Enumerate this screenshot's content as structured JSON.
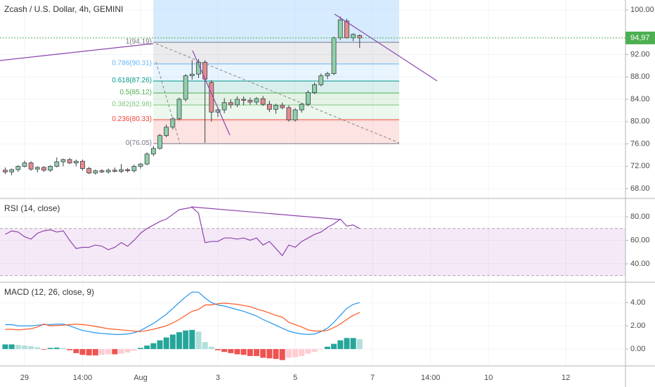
{
  "chart_data": [
    {
      "type": "candlestick",
      "title": "Zcash / U.S. Dollar, 4h, GEMINI",
      "xlim": [
        -0.81,
        96.25
      ],
      "xticks": [
        {
          "value": 3,
          "label": "29"
        },
        {
          "value": 12,
          "label": "14:00"
        },
        {
          "value": 21,
          "label": "Aug"
        },
        {
          "value": 33,
          "label": "3"
        },
        {
          "value": 45,
          "label": "5"
        },
        {
          "value": 57,
          "label": "7"
        },
        {
          "value": 66,
          "label": "14:00"
        },
        {
          "value": 75,
          "label": "10"
        },
        {
          "value": 87,
          "label": "12"
        }
      ],
      "ylim": [
        66.25,
        101.76
      ],
      "yticks": [
        {
          "value": 100,
          "label": "100.00"
        },
        {
          "value": 92,
          "label": "92.00"
        },
        {
          "value": 88,
          "label": "88.00"
        },
        {
          "value": 84,
          "label": "84.00"
        },
        {
          "value": 80,
          "label": "80.00"
        },
        {
          "value": 76,
          "label": "76.00"
        },
        {
          "value": 72,
          "label": "72.00"
        },
        {
          "value": 68,
          "label": "68.00"
        }
      ],
      "up_color": "#8fd1a8",
      "down_color": "#e88b8b",
      "open": [
        71.3,
        71.0,
        71.4,
        72.0,
        72.6,
        71.5,
        71.8,
        71.3,
        72.0,
        72.8,
        73.2,
        72.6,
        72.9,
        71.6,
        70.8,
        71.2,
        71.0,
        71.3,
        71.1,
        71.4,
        71.2,
        72.0,
        72.4,
        74.2,
        75.2,
        77.5,
        79.0,
        80.5,
        84.0,
        88.2,
        88.5,
        90.6,
        87.0,
        81.7,
        82.1,
        83.4,
        83.0,
        84.0,
        83.8,
        83.5,
        84.1,
        83.1,
        82.2,
        82.9,
        82.5,
        80.3,
        82.1,
        83.1,
        85.2,
        86.6,
        88.2,
        88.6,
        95.0,
        98.0,
        95.0,
        95.4
      ],
      "high": [
        71.8,
        71.6,
        72.2,
        73.0,
        72.9,
        72.0,
        72.0,
        72.2,
        73.6,
        73.4,
        73.5,
        73.2,
        73.2,
        71.9,
        71.4,
        71.5,
        71.6,
        71.8,
        72.4,
        71.7,
        72.3,
        72.6,
        74.5,
        75.6,
        77.8,
        79.5,
        80.8,
        84.3,
        88.5,
        91.0,
        91.2,
        91.0,
        87.4,
        82.6,
        84.2,
        84.0,
        84.5,
        84.5,
        84.3,
        84.4,
        84.6,
        83.7,
        83.2,
        83.4,
        82.9,
        82.4,
        83.4,
        85.6,
        87.0,
        88.6,
        88.9,
        95.2,
        98.8,
        98.4,
        95.8,
        95.6
      ],
      "low": [
        70.6,
        70.4,
        71.0,
        71.8,
        71.2,
        70.9,
        71.0,
        71.0,
        71.8,
        72.0,
        72.4,
        72.0,
        71.2,
        70.6,
        70.5,
        70.8,
        70.7,
        70.9,
        70.8,
        70.9,
        70.9,
        71.6,
        72.2,
        73.8,
        75.0,
        77.2,
        78.6,
        80.2,
        83.6,
        87.5,
        87.8,
        76.2,
        80.0,
        80.8,
        81.5,
        82.4,
        82.6,
        82.9,
        83.0,
        83.0,
        82.8,
        81.7,
        81.4,
        82.2,
        80.0,
        80.0,
        81.6,
        82.8,
        84.9,
        86.3,
        87.6,
        88.3,
        94.6,
        94.8,
        94.4,
        93.2
      ],
      "close": [
        71.0,
        71.4,
        72.0,
        72.6,
        71.5,
        71.8,
        71.3,
        72.0,
        72.8,
        73.2,
        72.6,
        72.9,
        71.6,
        70.8,
        71.2,
        71.0,
        71.3,
        71.1,
        71.4,
        71.2,
        72.0,
        72.4,
        74.2,
        75.2,
        77.5,
        79.0,
        80.5,
        84.0,
        88.2,
        88.5,
        90.6,
        87.6,
        81.7,
        82.1,
        83.4,
        83.0,
        84.0,
        83.8,
        83.5,
        84.1,
        83.1,
        82.2,
        82.9,
        82.5,
        80.3,
        82.1,
        83.1,
        85.2,
        86.6,
        88.2,
        88.6,
        95.0,
        98.2,
        95.0,
        95.6,
        94.97
      ],
      "last_price": {
        "value": 94.97,
        "label": "94,97"
      },
      "last_price_color": "#4caf50",
      "fib_levels": [
        {
          "label": "1(94.19)",
          "value": 94.19,
          "color": "#787b86"
        },
        {
          "label": "0.786(90.31)",
          "value": 90.31,
          "color": "#64b5f6"
        },
        {
          "label": "0.618(87.26)",
          "value": 87.26,
          "color": "#009688"
        },
        {
          "label": "0.5(85.12)",
          "value": 85.12,
          "color": "#4caf50"
        },
        {
          "label": "0.382(82.98)",
          "value": 82.98,
          "color": "#81c784"
        },
        {
          "label": "0.236(80.33)",
          "value": 80.33,
          "color": "#f44336"
        },
        {
          "label": "0(76.05)",
          "value": 76.05,
          "color": "#787b86"
        }
      ]
    },
    {
      "type": "line",
      "title": "RSI (14, close)",
      "color": "#8e44ad",
      "ylim": [
        25,
        95
      ],
      "yticks": [
        {
          "value": 80,
          "label": "80.00"
        },
        {
          "value": 60,
          "label": "60.00"
        },
        {
          "value": 40,
          "label": "40.00"
        }
      ],
      "band": [
        30,
        70
      ],
      "band_color": "#9c27b0",
      "values": [
        65,
        68,
        67,
        63,
        61,
        66,
        68,
        69,
        67,
        68,
        60,
        53,
        54,
        54,
        56,
        55,
        52,
        54,
        58,
        55,
        60,
        66,
        70,
        73,
        76,
        78,
        82,
        86,
        87,
        88,
        83,
        58,
        59,
        59,
        62,
        62,
        61,
        62,
        60,
        62,
        56,
        59,
        53,
        47,
        56,
        54,
        59,
        62,
        65,
        67,
        71,
        74,
        78,
        72,
        73,
        70
      ]
    },
    {
      "type": "macd",
      "title": "MACD (12, 26, close, 9)",
      "ylim": [
        -1.45,
        5.7
      ],
      "yticks": [
        {
          "value": 4,
          "label": "4.00"
        },
        {
          "value": 2,
          "label": "2.00"
        },
        {
          "value": 0,
          "label": "0.00"
        }
      ],
      "histogram_colors": [
        "#26a69a",
        "#b2dfdb",
        "#ef5350",
        "#ffcdd2"
      ],
      "histogram": [
        0.4,
        0.4,
        0.35,
        0.3,
        0.25,
        0.15,
        -0.05,
        0.1,
        0.12,
        0.1,
        -0.1,
        -0.35,
        -0.5,
        -0.55,
        -0.55,
        -0.5,
        -0.45,
        -0.45,
        -0.4,
        -0.3,
        -0.15,
        0.1,
        0.3,
        0.5,
        0.75,
        1.0,
        1.25,
        1.45,
        1.6,
        1.65,
        1.5,
        0.6,
        0.2,
        -0.1,
        -0.25,
        -0.35,
        -0.45,
        -0.5,
        -0.6,
        -0.6,
        -0.75,
        -0.8,
        -0.85,
        -0.95,
        -0.75,
        -0.7,
        -0.6,
        -0.4,
        -0.25,
        -0.05,
        0.2,
        0.45,
        0.75,
        0.95,
        0.95,
        0.85
      ],
      "series": [
        {
          "color": "#2196f3",
          "values": [
            2.1,
            2.1,
            2.0,
            2.0,
            2.0,
            2.05,
            2.1,
            2.1,
            2.15,
            2.15,
            2.0,
            1.8,
            1.6,
            1.5,
            1.4,
            1.35,
            1.3,
            1.25,
            1.25,
            1.3,
            1.4,
            1.6,
            1.9,
            2.2,
            2.6,
            3.0,
            3.5,
            4.0,
            4.5,
            4.9,
            4.9,
            4.4,
            4.0,
            3.8,
            3.7,
            3.55,
            3.4,
            3.25,
            3.05,
            2.85,
            2.55,
            2.3,
            2.05,
            1.8,
            1.55,
            1.4,
            1.3,
            1.25,
            1.3,
            1.5,
            1.8,
            2.3,
            2.9,
            3.5,
            3.85,
            4.0
          ]
        },
        {
          "color": "#ff5722",
          "values": [
            1.7,
            1.7,
            1.65,
            1.7,
            1.75,
            1.9,
            2.15,
            2.0,
            2.03,
            2.05,
            2.1,
            2.15,
            2.1,
            2.05,
            1.95,
            1.85,
            1.75,
            1.7,
            1.65,
            1.6,
            1.55,
            1.5,
            1.6,
            1.7,
            1.85,
            2.0,
            2.25,
            2.55,
            2.9,
            3.25,
            3.4,
            3.8,
            3.8,
            3.9,
            3.95,
            3.9,
            3.85,
            3.75,
            3.65,
            3.45,
            3.3,
            3.1,
            2.9,
            2.75,
            2.3,
            2.1,
            1.9,
            1.65,
            1.55,
            1.55,
            1.6,
            1.85,
            2.15,
            2.55,
            2.9,
            3.15
          ]
        }
      ]
    }
  ]
}
